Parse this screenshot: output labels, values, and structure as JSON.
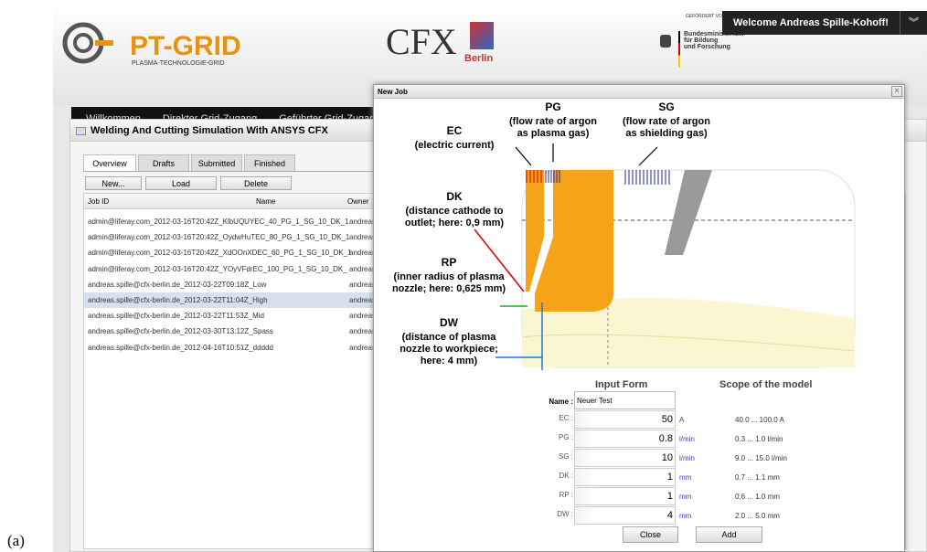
{
  "figure_label": "(a)",
  "header": {
    "logo_title": "PT-GRID",
    "logo_subtitle": "PLASMA-TECHNOLOGIE-GRID",
    "cfx_logo": "CFX",
    "cfx_sub": "Berlin",
    "funder_note": "GEFÖRDERT VOM",
    "funder_lines": [
      "Bundesministerium",
      "für Bildung",
      "und Forschung"
    ],
    "welcome": "Welcome Andreas Spille-Kohoff!"
  },
  "nav": [
    "Willkommen",
    "Direkter Grid-Zugang",
    "Geführter Grid-Zugang"
  ],
  "panel": {
    "title": "Welding And Cutting Simulation With ANSYS CFX",
    "tabs": [
      "Overview",
      "Drafts",
      "Submitted",
      "Finished"
    ],
    "buttons": [
      "New...",
      "Load",
      "Delete"
    ],
    "table": {
      "columns": [
        "Job ID",
        "Name",
        "Owner"
      ],
      "rows": [
        [
          "admin@liferay.com_2012-03-16T20:42Z_KlbUQUY",
          "EC_40_PG_1_SG_10_DK_1",
          "andreas."
        ],
        [
          "admin@liferay.com_2012-03-16T20:42Z_OydwHuT",
          "EC_80_PG_1_SG_10_DK_1",
          "andreas."
        ],
        [
          "admin@liferay.com_2012-03-16T20:42Z_XdOOnXD",
          "EC_60_PG_1_SG_10_DK_1",
          "andreas."
        ],
        [
          "admin@liferay.com_2012-03-16T20:42Z_YOyVFdr",
          "EC_100_PG_1_SG_10_DK_",
          "andreas."
        ],
        [
          "andreas.spille@cfx-berlin.de_2012-03-22T09:18Z_",
          "Low",
          "andreas."
        ],
        [
          "andreas.spille@cfx-berlin.de_2012-03-22T11:04Z_",
          "High",
          "andreas."
        ],
        [
          "andreas.spille@cfx-berlin.de_2012-03-22T11:53Z_",
          "Mid",
          "andreas."
        ],
        [
          "andreas.spille@cfx-berlin.de_2012-03-30T13:12Z_",
          "Spass",
          "andreas."
        ],
        [
          "andreas.spille@cfx-berlin.de_2012-04-16T10:51Z_",
          "ddddd",
          "andreas."
        ]
      ]
    }
  },
  "modal": {
    "title": "New Job",
    "close_icon": "×",
    "diagram": {
      "PG": {
        "name": "PG",
        "desc": [
          "(flow rate of argon",
          "as plasma gas)"
        ]
      },
      "SG": {
        "name": "SG",
        "desc": [
          "(flow rate of argon",
          "as shielding gas)"
        ]
      },
      "EC": {
        "name": "EC",
        "desc": [
          "(electric current)"
        ]
      },
      "DK": {
        "name": "DK",
        "desc": [
          "(distance cathode to",
          "outlet; here: 0,9 mm)"
        ]
      },
      "RP": {
        "name": "RP",
        "desc": [
          "(inner radius of plasma",
          "nozzle; here: 0,625 mm)"
        ]
      },
      "DW": {
        "name": "DW",
        "desc": [
          "(distance of plasma",
          "nozzle to workpiece;",
          "here: 4 mm)"
        ]
      }
    },
    "form": {
      "heading": "Input Form",
      "scope_heading": "Scope of the model",
      "name_label": "Name :",
      "name_value": "Neuer Test",
      "rows": [
        {
          "label": "EC :",
          "value": "50",
          "unit": "A",
          "scope": "40.0 ... 100.0 A"
        },
        {
          "label": "PG :",
          "value": "0.8",
          "unit": "l/min",
          "scope": "0.3 ... 1.0 l/min"
        },
        {
          "label": "SG :",
          "value": "10",
          "unit": "l/min",
          "scope": "9.0 ... 15.0 l/min"
        },
        {
          "label": "DK :",
          "value": "1",
          "unit": "mm",
          "scope": "0.7 ... 1.1 mm"
        },
        {
          "label": "RP :",
          "value": "1",
          "unit": "mm",
          "scope": "0.6 ... 1.0 mm"
        },
        {
          "label": "DW :",
          "value": "4",
          "unit": "mm",
          "scope": "2.0 ... 5.0 mm"
        }
      ],
      "buttons": [
        "Close",
        "Add"
      ]
    }
  }
}
